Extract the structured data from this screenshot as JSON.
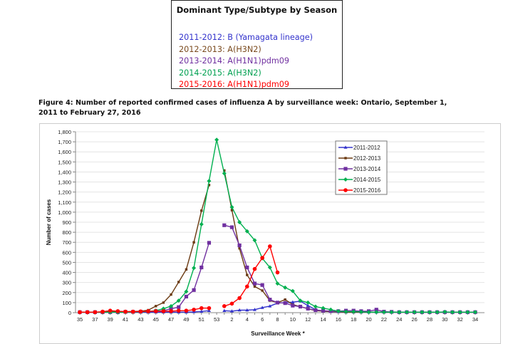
{
  "dominant_box": {
    "title": "Dominant Type/Subtype by Season",
    "lines": [
      {
        "text": "2011-2012: B (Yamagata lineage)",
        "color": "#3333cc"
      },
      {
        "text": "2012-2013: A(H3N2)",
        "color": "#7a4a1e"
      },
      {
        "text": "2013-2014: A(H1N1)pdm09",
        "color": "#7030a0"
      },
      {
        "text": "2014-2015: A(H3N2)",
        "color": "#00a050"
      },
      {
        "text": "2015-2016: A(H1N1)pdm09",
        "color": "#ff0000"
      }
    ]
  },
  "caption": "Figure 4: Number of reported confirmed cases of influenza A by surveillance week: Ontario, September 1, 2011 to February 27, 2016",
  "chart_data": {
    "type": "line",
    "xlabel": "Surveillance Week *",
    "ylabel": "Number of cases",
    "ylim": [
      0,
      1800
    ],
    "ytick_step": 100,
    "grid": true,
    "legend_placement": "top-right",
    "x": [
      35,
      36,
      37,
      38,
      39,
      40,
      41,
      42,
      43,
      44,
      45,
      46,
      47,
      48,
      49,
      50,
      51,
      52,
      53,
      1,
      2,
      3,
      4,
      5,
      6,
      7,
      8,
      9,
      10,
      11,
      12,
      13,
      14,
      15,
      16,
      17,
      18,
      19,
      20,
      21,
      22,
      23,
      24,
      25,
      26,
      27,
      28,
      29,
      30,
      31,
      32,
      33,
      34
    ],
    "series": [
      {
        "name": "2011-2012",
        "color": "#3333cc",
        "marker": "triangle",
        "values": [
          5,
          5,
          5,
          5,
          5,
          5,
          5,
          5,
          5,
          5,
          5,
          5,
          5,
          5,
          5,
          8,
          12,
          20,
          null,
          20,
          15,
          25,
          25,
          30,
          50,
          65,
          95,
          100,
          105,
          115,
          70,
          30,
          15,
          10,
          8,
          5,
          5,
          5,
          5,
          5,
          5,
          5,
          5,
          5,
          5,
          5,
          5,
          5,
          5,
          5,
          5,
          5,
          5
        ]
      },
      {
        "name": "2012-2013",
        "color": "#6b3a12",
        "marker": "small-square",
        "values": [
          5,
          5,
          5,
          5,
          10,
          10,
          10,
          12,
          15,
          25,
          65,
          100,
          180,
          305,
          430,
          700,
          1015,
          1270,
          null,
          1415,
          1020,
          640,
          375,
          260,
          220,
          120,
          100,
          130,
          80,
          60,
          40,
          20,
          15,
          10,
          10,
          5,
          5,
          5,
          5,
          5,
          5,
          5,
          5,
          5,
          5,
          5,
          5,
          5,
          5,
          5,
          5,
          5,
          5
        ]
      },
      {
        "name": "2013-2014",
        "color": "#7030a0",
        "marker": "square",
        "values": [
          5,
          5,
          5,
          5,
          5,
          5,
          8,
          8,
          10,
          10,
          15,
          20,
          40,
          55,
          160,
          225,
          450,
          695,
          null,
          870,
          850,
          670,
          450,
          290,
          275,
          130,
          100,
          95,
          70,
          60,
          40,
          25,
          20,
          15,
          15,
          20,
          20,
          15,
          15,
          30,
          10,
          8,
          5,
          5,
          5,
          5,
          5,
          5,
          5,
          5,
          5,
          5,
          5
        ]
      },
      {
        "name": "2014-2015",
        "color": "#00b050",
        "marker": "diamond",
        "values": [
          5,
          5,
          5,
          5,
          5,
          5,
          5,
          8,
          10,
          12,
          20,
          40,
          65,
          120,
          210,
          445,
          880,
          1310,
          1720,
          1385,
          1050,
          900,
          810,
          720,
          540,
          450,
          290,
          250,
          215,
          120,
          100,
          60,
          45,
          30,
          15,
          10,
          10,
          8,
          5,
          5,
          5,
          5,
          5,
          5,
          5,
          5,
          5,
          5,
          8,
          5,
          5,
          5,
          5
        ]
      },
      {
        "name": "2015-2016",
        "color": "#ff0000",
        "marker": "circle",
        "values": [
          5,
          5,
          5,
          10,
          20,
          15,
          10,
          10,
          12,
          15,
          15,
          15,
          15,
          20,
          20,
          30,
          45,
          45,
          null,
          65,
          90,
          145,
          260,
          435,
          545,
          660,
          400,
          null,
          null,
          null,
          null,
          null,
          null,
          null,
          null,
          null,
          null,
          null,
          null,
          null,
          null,
          null,
          null,
          null,
          null,
          null,
          null,
          null,
          null,
          null,
          null,
          null,
          null
        ]
      }
    ]
  }
}
